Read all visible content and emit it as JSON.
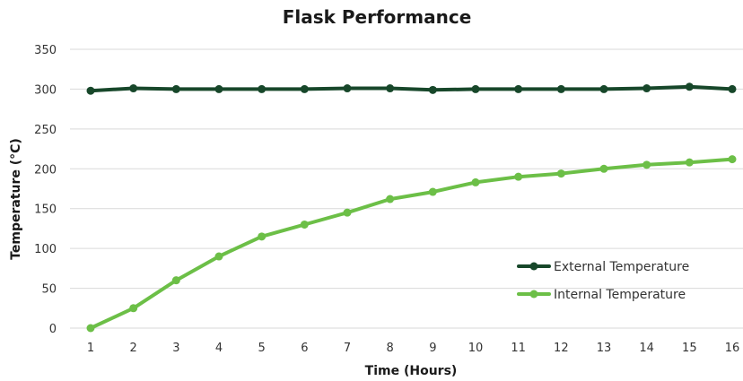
{
  "chart_data": {
    "type": "line",
    "title": "Flask Performance",
    "xlabel": "Time (Hours)",
    "ylabel": "Temperature  (°C)",
    "x": [
      1,
      2,
      3,
      4,
      5,
      6,
      7,
      8,
      9,
      10,
      11,
      12,
      13,
      14,
      15,
      16
    ],
    "ylim": [
      0,
      350
    ],
    "yticks": [
      0,
      50,
      100,
      150,
      200,
      250,
      300,
      350
    ],
    "grid": true,
    "legend_position": "bottom-right",
    "series": [
      {
        "name": "External Temperature",
        "color": "#17472a",
        "values": [
          298,
          301,
          300,
          300,
          300,
          300,
          301,
          301,
          299,
          300,
          300,
          300,
          300,
          301,
          303,
          300
        ]
      },
      {
        "name": "Internal Temperature",
        "color": "#6cbf47",
        "values": [
          0,
          25,
          60,
          90,
          115,
          130,
          145,
          162,
          171,
          183,
          190,
          194,
          200,
          205,
          208,
          212
        ]
      }
    ]
  }
}
